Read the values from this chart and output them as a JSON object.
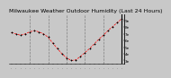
{
  "title": "Milwaukee Weather Outdoor Humidity (Last 24 Hours)",
  "background_color": "#c8c8c8",
  "plot_bg_color": "#c8c8c8",
  "line_color": "#ff0000",
  "marker_color": "#000000",
  "grid_color": "#808080",
  "y_values": [
    72,
    70,
    68,
    70,
    73,
    75,
    73,
    70,
    65,
    56,
    48,
    40,
    34,
    30,
    31,
    36,
    42,
    48,
    55,
    62,
    68,
    75,
    81,
    87,
    93
  ],
  "ylim": [
    25,
    100
  ],
  "ytick_labels": [
    "9e",
    "8e",
    "7e",
    "6e",
    "5e",
    "4e",
    "3e"
  ],
  "ytick_values": [
    90,
    80,
    70,
    60,
    50,
    40,
    30
  ],
  "x_grid_positions": [
    4,
    8,
    12,
    16,
    20
  ],
  "title_fontsize": 4.5,
  "tick_fontsize": 3.0,
  "ylabel_fontsize": 3.0,
  "num_points": 25
}
